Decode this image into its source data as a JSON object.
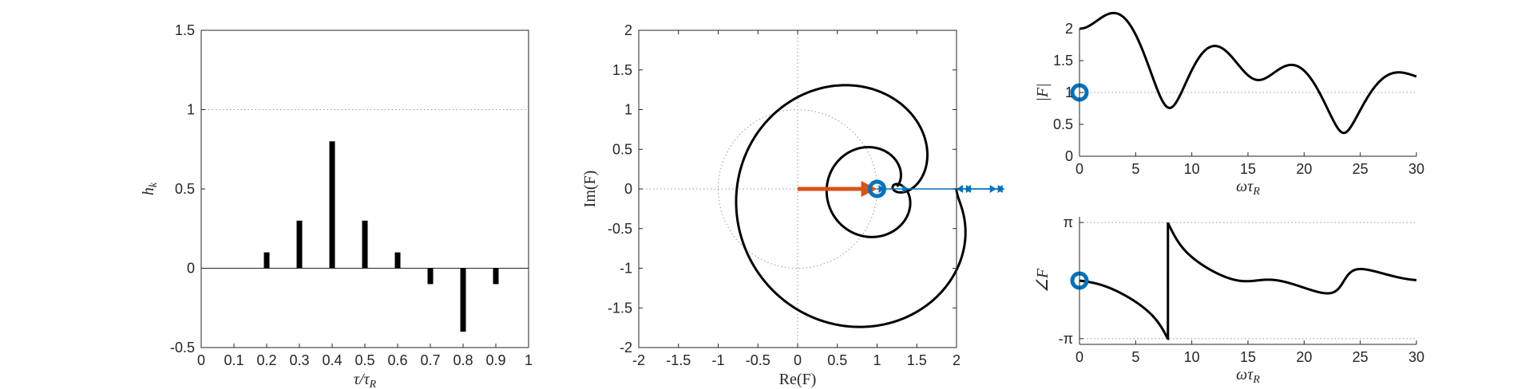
{
  "colors": {
    "curve": "#000000",
    "marker": "#0072BD",
    "arrow": "#D95319",
    "axis": "#262626",
    "grid": "#9a9a9a"
  },
  "chart_data": [
    {
      "id": "impulse",
      "type": "bar",
      "xlabel": "τ/τR",
      "ylabel": "hk",
      "xlim": [
        0,
        1
      ],
      "ylim": [
        -0.5,
        1.5
      ],
      "xticks": [
        0,
        0.1,
        0.2,
        0.3,
        0.4,
        0.5,
        0.6,
        0.7,
        0.8,
        0.9,
        1
      ],
      "xtick_labels": [
        "0",
        "0.1",
        "0.2",
        "0.3",
        "0.4",
        "0.5",
        "0.6",
        "0.7",
        "0.8",
        "0.9",
        "1"
      ],
      "yticks": [
        -0.5,
        0,
        0.5,
        1,
        1.5
      ],
      "ytick_labels": [
        "-0.5",
        "0",
        "0.5",
        "1",
        "1.5"
      ],
      "x": [
        0.2,
        0.3,
        0.4,
        0.5,
        0.6,
        0.7,
        0.8,
        0.9
      ],
      "values": [
        0.1,
        0.3,
        0.8,
        0.3,
        0.1,
        -0.1,
        -0.4,
        -0.1
      ],
      "reference_lines": {
        "y": [
          1
        ],
        "y_solid": [
          0
        ]
      }
    },
    {
      "id": "nyquist",
      "type": "line",
      "xlabel": "Re(F)",
      "ylabel": "Im(F)",
      "xlim": [
        -2,
        2
      ],
      "ylim": [
        -2,
        2
      ],
      "xticks": [
        -2,
        -1.5,
        -1,
        -0.5,
        0,
        0.5,
        1,
        1.5,
        2
      ],
      "xtick_labels": [
        "-2",
        "-1.5",
        "-1",
        "-0.5",
        "0",
        "0.5",
        "1",
        "1.5",
        "2"
      ],
      "yticks": [
        -2,
        -1.5,
        -1,
        -0.5,
        0,
        0.5,
        1,
        1.5,
        2
      ],
      "ytick_labels": [
        "-2",
        "-1.5",
        "-1",
        "-0.5",
        "0",
        "0.5",
        "1",
        "1.5",
        "2"
      ],
      "unit_circle": true,
      "marker_point": [
        1,
        0
      ],
      "arrow": {
        "from": [
          0,
          0
        ],
        "to": [
          1,
          0
        ]
      },
      "coefficient_vectors": [
        0.1,
        0.3,
        0.8,
        0.3,
        0.1,
        -0.1,
        -0.4,
        -0.1
      ],
      "curve": "F(ω) = 1 + Σ hk·e^(−iωτk)"
    },
    {
      "id": "magnitude",
      "type": "line",
      "xlabel": "ωτR",
      "ylabel": "|F|",
      "xlim": [
        0,
        30
      ],
      "ylim": [
        0,
        2
      ],
      "xticks": [
        0,
        5,
        10,
        15,
        20,
        25,
        30
      ],
      "xtick_labels": [
        "0",
        "5",
        "10",
        "15",
        "20",
        "25",
        "30"
      ],
      "yticks": [
        0,
        0.5,
        1,
        1.5,
        2
      ],
      "ytick_labels": [
        "0",
        "0.5",
        "1",
        "1.5",
        "2"
      ],
      "reference_lines": {
        "y": [
          1
        ]
      },
      "marker_point": [
        0,
        1
      ]
    },
    {
      "id": "phase",
      "type": "line",
      "xlabel": "ωτR",
      "ylabel": "∠F",
      "xlim": [
        0,
        30
      ],
      "ylim": [
        -3.45,
        3.45
      ],
      "xticks": [
        0,
        5,
        10,
        15,
        20,
        25,
        30
      ],
      "xtick_labels": [
        "0",
        "5",
        "10",
        "15",
        "20",
        "25",
        "30"
      ],
      "yticks": [
        -3.14159,
        3.14159
      ],
      "ytick_labels": [
        "-π",
        "π"
      ],
      "reference_lines": {
        "y": [
          -3.14159,
          3.14159
        ]
      },
      "marker_point": [
        0,
        0
      ]
    }
  ]
}
